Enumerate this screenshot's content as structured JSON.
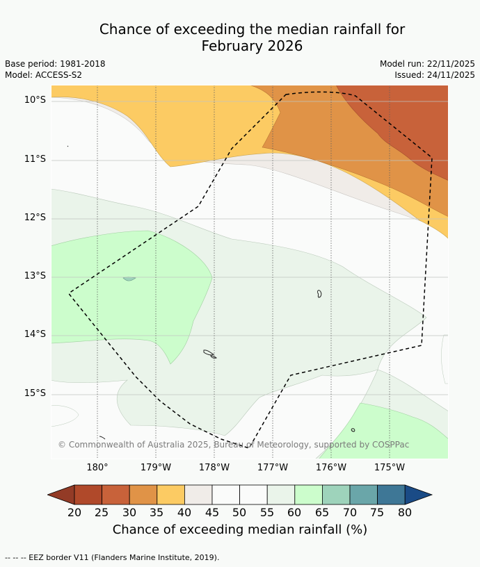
{
  "title": {
    "line1": "Chance of exceeding the median rainfall for",
    "line2": "February 2026"
  },
  "meta": {
    "base_period": "Base period: 1981-2018",
    "model": "Model: ACCESS-S2",
    "model_run": "Model run: 22/11/2025",
    "issued": "Issued: 24/11/2025"
  },
  "map": {
    "lat_labels": [
      "10°S",
      "11°S",
      "12°S",
      "13°S",
      "14°S",
      "15°S"
    ],
    "lon_labels": [
      "180°",
      "179°W",
      "178°W",
      "177°W",
      "176°W",
      "175°W"
    ],
    "copyright": "© Commonwealth of Australia 2025, Bureau of Meteorology, supported by COSPPac"
  },
  "colorbar": {
    "ticks": [
      "20",
      "25",
      "30",
      "35",
      "40",
      "45",
      "50",
      "55",
      "60",
      "65",
      "70",
      "75",
      "80"
    ],
    "title": "Chance of exceeding median rainfall (%)",
    "colors": {
      "below_20": "#933b26",
      "c20_25": "#b0492a",
      "c25_30": "#c8623a",
      "c30_35": "#e09347",
      "c35_40": "#fccb63",
      "c40_45": "#f0ece8",
      "c45_50": "#fafbfa",
      "c50_55": "#fafbfa",
      "c55_60": "#eaf4ea",
      "c60_65": "#ccfdcc",
      "c65_70": "#9ed3bb",
      "c70_75": "#6aa6a9",
      "c75_80": "#3e7796",
      "above_80": "#1a4b86"
    }
  },
  "legend": {
    "eez": "--  --  -- EEZ border V11 (Flanders Marine Institute, 2019)."
  }
}
